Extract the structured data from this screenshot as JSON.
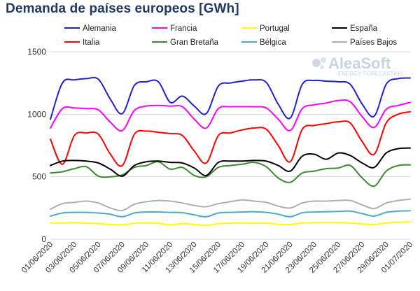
{
  "title": "Demanda de países europeos [GWh]",
  "watermark": {
    "brand": "AleaSoft",
    "tagline": "ENERGY FORECASTING"
  },
  "chart_data": {
    "type": "line",
    "title": "Demanda de países europeos [GWh]",
    "xlabel": "",
    "ylabel": "",
    "ylim": [
      0,
      1500
    ],
    "yticks": [
      0,
      500,
      1000,
      1500
    ],
    "grid": true,
    "legend_position": "top",
    "x": [
      "01/06/2020",
      "02/06/2020",
      "03/06/2020",
      "04/06/2020",
      "05/06/2020",
      "06/06/2020",
      "07/06/2020",
      "08/06/2020",
      "09/06/2020",
      "10/06/2020",
      "11/06/2020",
      "12/06/2020",
      "13/06/2020",
      "14/06/2020",
      "15/06/2020",
      "16/06/2020",
      "17/06/2020",
      "18/06/2020",
      "19/06/2020",
      "20/06/2020",
      "21/06/2020",
      "22/06/2020",
      "23/06/2020",
      "24/06/2020",
      "25/06/2020",
      "26/06/2020",
      "27/06/2020",
      "28/06/2020",
      "29/06/2020",
      "30/06/2020",
      "01/07/2020"
    ],
    "xtick_labels": [
      "01/06/2020",
      "03/06/2020",
      "05/06/2020",
      "07/06/2020",
      "09/06/2020",
      "11/06/2020",
      "13/06/2020",
      "15/06/2020",
      "17/06/2020",
      "19/06/2020",
      "21/06/2020",
      "23/06/2020",
      "25/06/2020",
      "27/06/2020",
      "29/06/2020",
      "01/07/2020"
    ],
    "series": [
      {
        "name": "Alemania",
        "color": "#1f1fd6",
        "values": [
          960,
          1250,
          1275,
          1285,
          1280,
          1120,
          1005,
          1230,
          1260,
          1260,
          1095,
          1145,
          1065,
          1005,
          1225,
          1250,
          1265,
          1275,
          1255,
          1080,
          970,
          1240,
          1270,
          1265,
          1260,
          1240,
          1080,
          985,
          1240,
          1285,
          1290
        ]
      },
      {
        "name": "Francia",
        "color": "#ff00ff",
        "values": [
          890,
          1045,
          1050,
          1045,
          1035,
          935,
          870,
          1030,
          1065,
          1070,
          1065,
          1060,
          960,
          890,
          1045,
          1060,
          1060,
          1060,
          1050,
          960,
          870,
          1045,
          1075,
          1090,
          1110,
          1100,
          980,
          895,
          1040,
          1070,
          1095
        ]
      },
      {
        "name": "Portugal",
        "color": "#ffff00",
        "values": [
          130,
          130,
          132,
          128,
          125,
          118,
          115,
          127,
          130,
          128,
          115,
          125,
          118,
          110,
          125,
          128,
          130,
          128,
          128,
          120,
          118,
          130,
          132,
          133,
          132,
          130,
          122,
          118,
          130,
          135,
          138
        ]
      },
      {
        "name": "España",
        "color": "#000000",
        "values": [
          590,
          625,
          630,
          625,
          610,
          560,
          505,
          590,
          620,
          625,
          615,
          610,
          570,
          510,
          615,
          625,
          625,
          630,
          625,
          590,
          545,
          665,
          680,
          640,
          690,
          670,
          610,
          575,
          690,
          725,
          730
        ]
      },
      {
        "name": "Italia",
        "color": "#ff0000",
        "values": [
          800,
          600,
          830,
          850,
          840,
          680,
          590,
          840,
          865,
          855,
          845,
          830,
          705,
          610,
          830,
          850,
          875,
          890,
          880,
          750,
          620,
          880,
          910,
          925,
          940,
          930,
          780,
          680,
          930,
          1000,
          1020
        ]
      },
      {
        "name": "Gran Bretaña",
        "color": "#3c8a2e",
        "values": [
          530,
          540,
          565,
          580,
          505,
          500,
          515,
          575,
          590,
          620,
          560,
          575,
          510,
          500,
          575,
          590,
          600,
          615,
          580,
          490,
          455,
          530,
          545,
          565,
          570,
          590,
          490,
          425,
          545,
          590,
          595
        ]
      },
      {
        "name": "Bélgica",
        "color": "#4bacc6",
        "values": [
          185,
          210,
          215,
          215,
          210,
          200,
          180,
          210,
          218,
          218,
          215,
          212,
          195,
          180,
          210,
          215,
          218,
          220,
          215,
          200,
          180,
          212,
          218,
          220,
          222,
          225,
          205,
          185,
          215,
          225,
          228
        ]
      },
      {
        "name": "Países Bajos",
        "color": "#b0b0b0",
        "values": [
          240,
          285,
          295,
          305,
          290,
          250,
          230,
          280,
          300,
          310,
          305,
          290,
          270,
          260,
          285,
          300,
          315,
          305,
          295,
          265,
          250,
          290,
          305,
          305,
          310,
          310,
          275,
          245,
          290,
          310,
          320
        ]
      }
    ]
  }
}
